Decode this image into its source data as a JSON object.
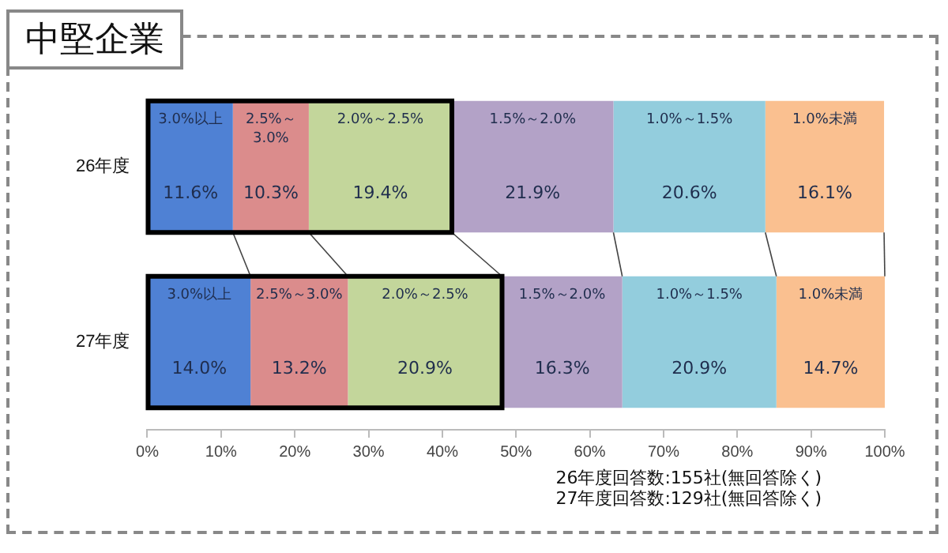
{
  "chart_data": {
    "type": "bar",
    "title": "中堅企業",
    "orientation": "horizontal",
    "stacked": true,
    "categories": [
      "26年度",
      "27年度"
    ],
    "series": [
      {
        "name": "3.0%以上",
        "color": "#4f81d4",
        "values": [
          11.6,
          14.0
        ],
        "value_labels": [
          "11.6%",
          "14.0%"
        ]
      },
      {
        "name": "2.5%～3.0%",
        "color": "#db8c8c",
        "values": [
          10.3,
          13.2
        ],
        "value_labels": [
          "10.3%",
          "13.2%"
        ]
      },
      {
        "name": "2.0%～2.5%",
        "color": "#c3d69b",
        "values": [
          19.4,
          20.9
        ],
        "value_labels": [
          "19.4%",
          "20.9%"
        ]
      },
      {
        "name": "1.5%～2.0%",
        "color": "#b3a2c7",
        "values": [
          21.9,
          16.3
        ],
        "value_labels": [
          "21.9%",
          "16.3%"
        ]
      },
      {
        "name": "1.0%～1.5%",
        "color": "#93cddd",
        "values": [
          20.6,
          20.9
        ],
        "value_labels": [
          "20.6%",
          "20.9%"
        ]
      },
      {
        "name": "1.0%未満",
        "color": "#fac090",
        "values": [
          16.1,
          14.7
        ],
        "value_labels": [
          "16.1%",
          "14.7%"
        ]
      }
    ],
    "xlim": [
      0,
      100
    ],
    "xticks": [
      {
        "value": 0,
        "label": "0%"
      },
      {
        "value": 10,
        "label": "10%"
      },
      {
        "value": 20,
        "label": "20%"
      },
      {
        "value": 30,
        "label": "30%"
      },
      {
        "value": 40,
        "label": "40%"
      },
      {
        "value": 50,
        "label": "50%"
      },
      {
        "value": 60,
        "label": "60%"
      },
      {
        "value": 70,
        "label": "70%"
      },
      {
        "value": 80,
        "label": "80%"
      },
      {
        "value": 90,
        "label": "90%"
      },
      {
        "value": 100,
        "label": "100%"
      }
    ],
    "grid": false,
    "legend": false,
    "annotations": [
      "26年度回答数:155社(無回答除く)",
      "27年度回答数:129社(無回答除く)"
    ]
  }
}
